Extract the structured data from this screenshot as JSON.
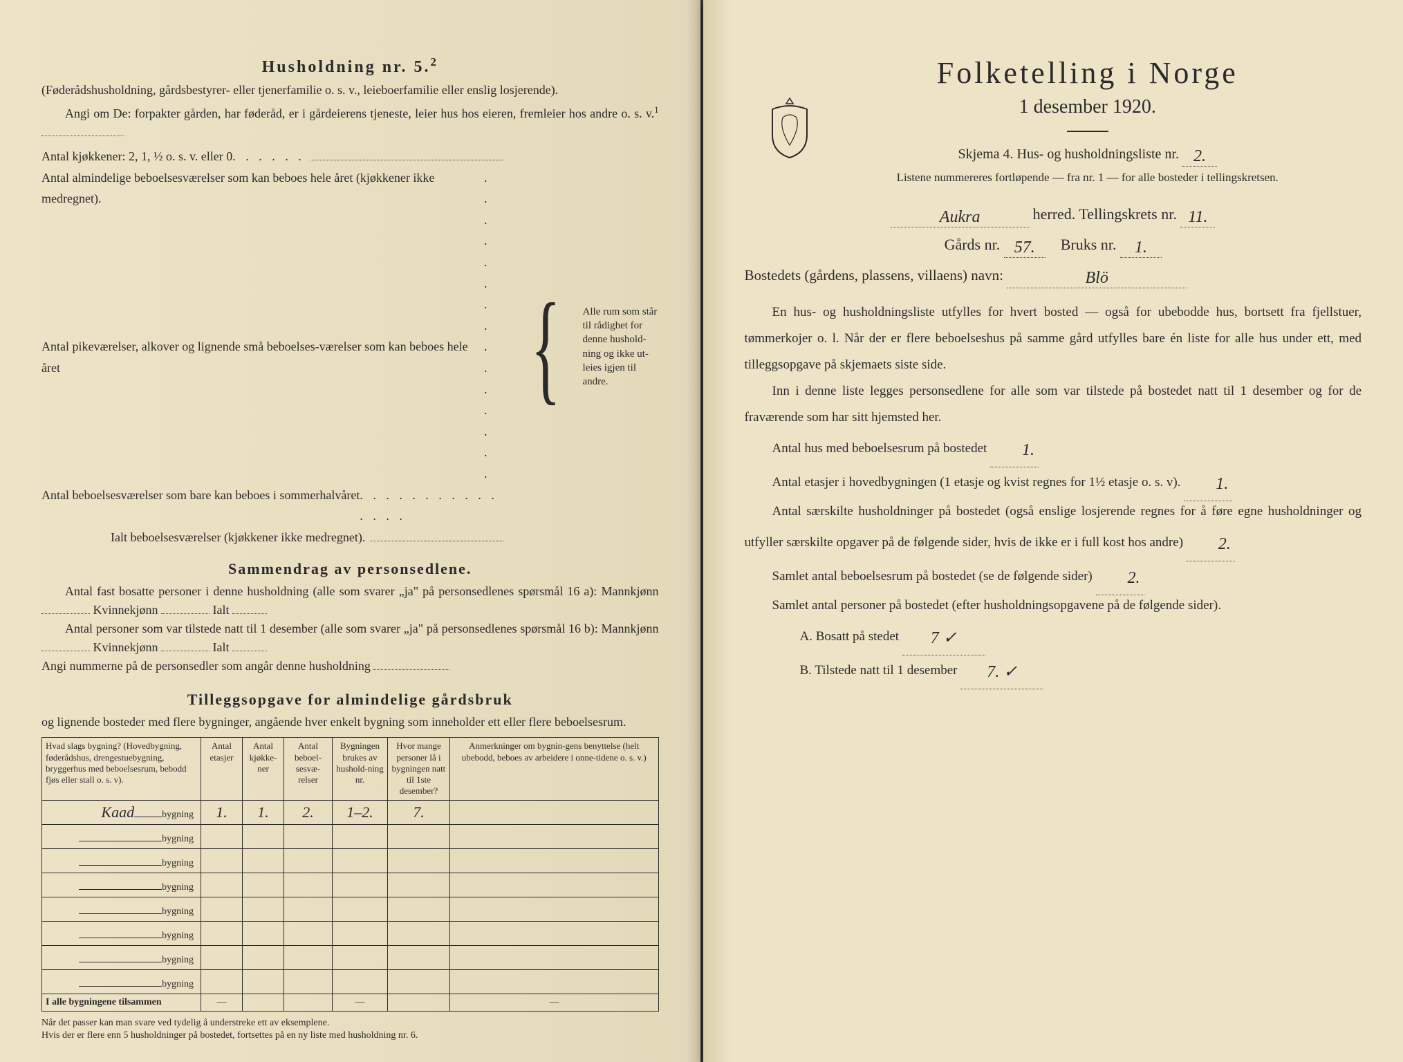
{
  "left": {
    "heading": "Husholdning nr. 5.",
    "heading_sup": "2",
    "intro1": "(Føderådshusholdning, gårdsbestyrer- eller tjenerfamilie o. s. v., leieboerfamilie eller enslig losjerende).",
    "intro2": "Angi om De: forpakter gården, har føderåd, er i gårdeierens tjeneste, leier hus hos eieren, fremleier hos andre o. s. v.",
    "intro2_sup": "1",
    "kitchens_line": "Antal kjøkkener: 2, 1, ½ o. s. v. eller 0",
    "rooms_lines": [
      "Antal almindelige beboelsesværelser som kan beboes hele året (kjøkkener ikke medregnet).",
      "Antal pikeværelser, alkover og lignende små beboelses-værelser som kan beboes hele året",
      "Antal beboelsesværelser som bare kan beboes i sommerhalvåret",
      "Ialt beboelsesværelser (kjøkkener ikke medregnet)."
    ],
    "brace_text": "Alle rum som står til rådighet for denne hushold-ning og ikke ut-leies igjen til andre.",
    "section2_heading": "Sammendrag av personsedlene.",
    "s2_line1a": "Antal fast bosatte personer i denne husholdning (alle som svarer „ja\" på personsedlenes spørsmål 16 a): Mannkjønn",
    "s2_kvinne": "Kvinnekjønn",
    "s2_ialt": "Ialt",
    "s2_line2a": "Antal personer som var tilstede natt til 1 desember (alle som svarer „ja\" på personsedlenes spørsmål 16 b): Mannkjønn",
    "s2_line3": "Angi nummerne på de personsedler som angår denne husholdning",
    "section3_heading": "Tilleggsopgave for almindelige gårdsbruk",
    "s3_intro": "og lignende bosteder med flere bygninger, angående hver enkelt bygning som inneholder ett eller flere beboelsesrum.",
    "table_headers": [
      "Hvad slags bygning?\n(Hovedbygning, føderådshus, drengestuebygning, bryggerhus med beboelsesrum, bebodd fjøs eller stall o. s. v).",
      "Antal etasjer",
      "Antal kjøkke-ner",
      "Antal beboel-sesvæ-relser",
      "Bygningen brukes av hushold-ning nr.",
      "Hvor mange personer lå i bygningen natt til 1ste desember?",
      "Anmerkninger om bygnin-gens benyttelse (helt ubebodd, beboes av arbeidere i onne-tidene o. s. v.)"
    ],
    "rows": [
      {
        "label": "Kaad",
        "suffix": "bygning",
        "c1": "1.",
        "c2": "1.",
        "c3": "2.",
        "c4": "1–2.",
        "c5": "7.",
        "c6": ""
      },
      {
        "label": "",
        "suffix": "bygning",
        "c1": "",
        "c2": "",
        "c3": "",
        "c4": "",
        "c5": "",
        "c6": ""
      },
      {
        "label": "",
        "suffix": "bygning",
        "c1": "",
        "c2": "",
        "c3": "",
        "c4": "",
        "c5": "",
        "c6": ""
      },
      {
        "label": "",
        "suffix": "bygning",
        "c1": "",
        "c2": "",
        "c3": "",
        "c4": "",
        "c5": "",
        "c6": ""
      },
      {
        "label": "",
        "suffix": "bygning",
        "c1": "",
        "c2": "",
        "c3": "",
        "c4": "",
        "c5": "",
        "c6": ""
      },
      {
        "label": "",
        "suffix": "bygning",
        "c1": "",
        "c2": "",
        "c3": "",
        "c4": "",
        "c5": "",
        "c6": ""
      },
      {
        "label": "",
        "suffix": "bygning",
        "c1": "",
        "c2": "",
        "c3": "",
        "c4": "",
        "c5": "",
        "c6": ""
      },
      {
        "label": "",
        "suffix": "bygning",
        "c1": "",
        "c2": "",
        "c3": "",
        "c4": "",
        "c5": "",
        "c6": ""
      }
    ],
    "total_row_label": "I alle bygningene tilsammen",
    "footnote": "Når det passer kan man svare ved tydelig å understreke ett av eksemplene.\nHvis der er flere enn 5 husholdninger på bostedet, fortsettes på en ny liste med husholdning nr. 6."
  },
  "right": {
    "title": "Folketelling i Norge",
    "date": "1 desember 1920.",
    "skjema_pre": "Skjema 4.   Hus- og husholdningsliste nr.",
    "skjema_val": "2.",
    "listene": "Listene nummereres fortløpende — fra nr. 1 — for alle bosteder i tellingskretsen.",
    "herred_val": "Aukra",
    "herred_suffix": "herred.   Tellingskrets nr.",
    "krets_val": "11.",
    "gards_pre": "Gårds nr.",
    "gards_val": "57.",
    "bruks_pre": "Bruks nr.",
    "bruks_val": "1.",
    "bosted_pre": "Bostedets (gårdens, plassens, villaens) navn:",
    "bosted_val": "Blö",
    "para1": "En hus- og husholdningsliste utfylles for hvert bosted — også for ubebodde hus, bortsett fra fjellstuer, tømmerkojer o. l. Når der er flere beboelseshus på samme gård utfylles bare én liste for alle hus under ett, med tilleggsopgave på skjemaets siste side.",
    "para2": "Inn i denne liste legges personsedlene for alle som var tilstede på bostedet natt til 1 desember og for de fraværende som har sitt hjemsted her.",
    "q1": "Antal hus med beboelsesrum på bostedet",
    "q1_val": "1.",
    "q2a": "Antal etasjer i hovedbygningen (1 etasje og kvist regnes for 1½ etasje o. s. v).",
    "q2_val": "1.",
    "q3": "Antal særskilte husholdninger på bostedet (også enslige losjerende regnes for å føre egne husholdninger og utfyller særskilte opgaver på de følgende sider, hvis de ikke er i full kost hos andre)",
    "q3_val": "2.",
    "q4": "Samlet antal beboelsesrum på bostedet (se de følgende sider)",
    "q4_val": "2.",
    "q5": "Samlet antal personer på bostedet (efter husholdningsopgavene på de følgende sider).",
    "qA": "A.  Bosatt på stedet",
    "qA_val": "7 ✓",
    "qB": "B.  Tilstede natt til 1 desember",
    "qB_val": "7. ✓"
  },
  "colors": {
    "paper": "#ede4c8",
    "ink": "#2a2a2a",
    "background": "#3a3a3a"
  }
}
